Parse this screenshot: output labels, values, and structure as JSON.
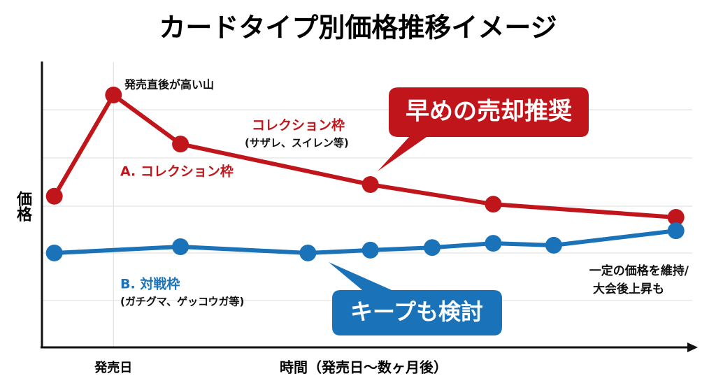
{
  "chart_data": {
    "type": "line",
    "title": "カードタイプ別価格推移イメージ",
    "x_label": "時間（発売日〜数ヶ月後）",
    "y_label": "価格",
    "xlim": [
      0,
      100
    ],
    "ylim": [
      0,
      100
    ],
    "xticks": [
      {
        "value": 11,
        "label": "発売日"
      }
    ],
    "grid": true,
    "series": [
      {
        "name": "A. コレクション枠",
        "color": "#c0161b",
        "x": [
          1.9,
          11,
          21.3,
          50.5,
          69.4,
          97.5
        ],
        "values": [
          53,
          88.5,
          71.3,
          57.1,
          50.2,
          45.6
        ]
      },
      {
        "name": "B. 対戦枠",
        "color": "#1a72b8",
        "x": [
          1.9,
          21.3,
          40.9,
          50.5,
          60,
          69.4,
          78.7,
          97.5
        ],
        "values": [
          33.1,
          35.3,
          33.1,
          34.1,
          35,
          36.5,
          35.8,
          40.9
        ]
      }
    ],
    "annotations": {
      "peak": "発売直後が高い山",
      "collection_title": "コレクション枠",
      "collection_examples": "(サザレ、スイレン等)",
      "battle_examples": "(ガチグマ、ゲッコウガ等)",
      "stable_line1": "一定の価格を維持/",
      "stable_line2": "大会後上昇も",
      "sell_callout": "早めの売却推奨",
      "keep_callout": "キープも検討"
    }
  }
}
